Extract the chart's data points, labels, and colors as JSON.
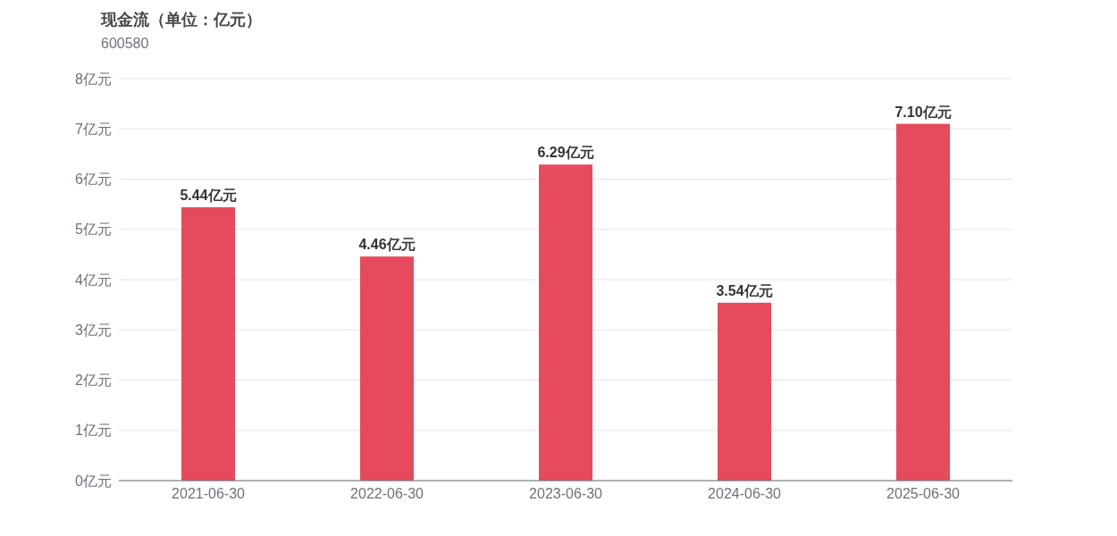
{
  "chart_data": {
    "type": "bar",
    "title": "现金流（单位：亿元）",
    "subtitle": "600580",
    "categories": [
      "2021-06-30",
      "2022-06-30",
      "2023-06-30",
      "2024-06-30",
      "2025-06-30"
    ],
    "values": [
      5.44,
      4.46,
      6.29,
      3.54,
      7.1
    ],
    "color": "#e64b5d",
    "value_labels": [
      "5.44亿元",
      "4.46亿元",
      "6.29亿元",
      "3.54亿元",
      "7.10亿元"
    ],
    "ylim": [
      0,
      8
    ],
    "yticks": [
      {
        "value": 0,
        "label": "0亿元"
      },
      {
        "value": 1,
        "label": "1亿元"
      },
      {
        "value": 2,
        "label": "2亿元"
      },
      {
        "value": 3,
        "label": "3亿元"
      },
      {
        "value": 4,
        "label": "4亿元"
      },
      {
        "value": 5,
        "label": "5亿元"
      },
      {
        "value": 6,
        "label": "6亿元"
      },
      {
        "value": 7,
        "label": "7亿元"
      },
      {
        "value": 8,
        "label": "8亿元"
      }
    ],
    "grid": "y"
  }
}
